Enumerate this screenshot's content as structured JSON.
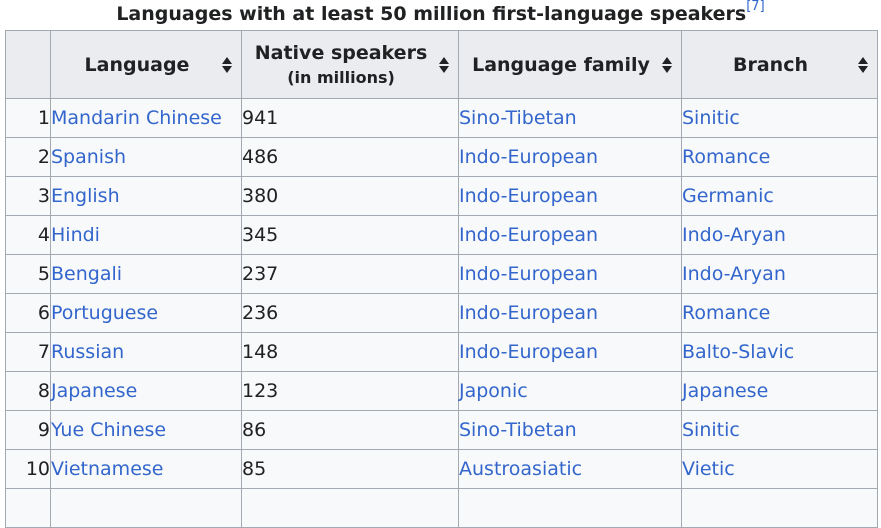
{
  "caption": {
    "title": "Languages with at least 50 million first-language speakers",
    "ref": "[7]"
  },
  "columns": {
    "rank": "",
    "language": "Language",
    "speakers": "Native speakers",
    "speakers_unit": "(in millions)",
    "family": "Language family",
    "branch": "Branch"
  },
  "rows": [
    {
      "rank": "1",
      "language": "Mandarin Chinese",
      "speakers": "941",
      "family": "Sino-Tibetan",
      "branch": "Sinitic"
    },
    {
      "rank": "2",
      "language": "Spanish",
      "speakers": "486",
      "family": "Indo-European",
      "branch": "Romance"
    },
    {
      "rank": "3",
      "language": "English",
      "speakers": "380",
      "family": "Indo-European",
      "branch": "Germanic"
    },
    {
      "rank": "4",
      "language": "Hindi",
      "speakers": "345",
      "family": "Indo-European",
      "branch": "Indo-Aryan"
    },
    {
      "rank": "5",
      "language": "Bengali",
      "speakers": "237",
      "family": "Indo-European",
      "branch": "Indo-Aryan"
    },
    {
      "rank": "6",
      "language": "Portuguese",
      "speakers": "236",
      "family": "Indo-European",
      "branch": "Romance"
    },
    {
      "rank": "7",
      "language": "Russian",
      "speakers": "148",
      "family": "Indo-European",
      "branch": "Balto-Slavic"
    },
    {
      "rank": "8",
      "language": "Japanese",
      "speakers": "123",
      "family": "Japonic",
      "branch": "Japanese"
    },
    {
      "rank": "9",
      "language": "Yue Chinese",
      "speakers": "86",
      "family": "Sino-Tibetan",
      "branch": "Sinitic"
    },
    {
      "rank": "10",
      "language": "Vietnamese",
      "speakers": "85",
      "family": "Austroasiatic",
      "branch": "Vietic"
    }
  ],
  "colors": {
    "link": "#3366cc",
    "header_bg": "#eaecf0",
    "cell_bg": "#f8f9fa",
    "border": "#a2a9b1",
    "text": "#202122"
  },
  "icons": {
    "sort": "sort-icon"
  }
}
